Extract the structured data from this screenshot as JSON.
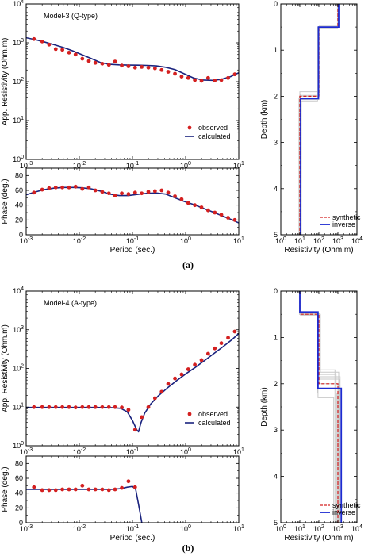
{
  "figure_labels": {
    "a": "(a)",
    "b": "(b)"
  },
  "colors": {
    "observed": "#d42020",
    "calculated": "#1a237e",
    "inverse": "#1d2bd1",
    "synthetic": "#d42020",
    "ensemble": "#c9c9c9"
  },
  "chart_data": [
    {
      "id": "a-rho",
      "type": "scatter",
      "title": "Model-3 (Q-type)",
      "xlabel": "",
      "ylabel": "App. Resistivity (Ohm.m)",
      "xscale": "log",
      "yscale": "log",
      "xlim": [
        0.001,
        10
      ],
      "ylim": [
        1,
        10000
      ],
      "xticks": [
        "10^-3",
        "10^-2",
        "10^-1",
        "10^0",
        "10^1"
      ],
      "yticks": [
        "10^0",
        "10^1",
        "10^2",
        "10^3",
        "10^4"
      ],
      "legend": {
        "position": "bottom-right",
        "entries": [
          "observed",
          "calculated"
        ]
      },
      "series": [
        {
          "name": "observed",
          "style": "points",
          "x": [
            0.0014,
            0.002,
            0.0027,
            0.0036,
            0.0048,
            0.0064,
            0.0085,
            0.0114,
            0.0151,
            0.02,
            0.027,
            0.036,
            0.047,
            0.063,
            0.084,
            0.112,
            0.149,
            0.199,
            0.265,
            0.354,
            0.47,
            0.63,
            0.84,
            1.12,
            1.49,
            1.99,
            2.65,
            3.54,
            4.7,
            6.3,
            8.4
          ],
          "y": [
            1250,
            1080,
            900,
            690,
            660,
            560,
            500,
            390,
            340,
            305,
            290,
            270,
            330,
            260,
            250,
            230,
            240,
            230,
            220,
            200,
            180,
            160,
            135,
            125,
            110,
            105,
            125,
            108,
            110,
            125,
            155
          ]
        },
        {
          "name": "calculated",
          "style": "line",
          "x": [
            0.001,
            0.0015,
            0.0022,
            0.0033,
            0.005,
            0.0075,
            0.011,
            0.017,
            0.025,
            0.037,
            0.056,
            0.084,
            0.125,
            0.19,
            0.28,
            0.42,
            0.63,
            0.94,
            1.4,
            2.1,
            3.2,
            4.7,
            7.0,
            10.0
          ],
          "y": [
            1350,
            1200,
            1050,
            900,
            760,
            620,
            500,
            390,
            310,
            280,
            270,
            268,
            266,
            262,
            255,
            235,
            205,
            160,
            125,
            110,
            108,
            115,
            135,
            170
          ]
        }
      ]
    },
    {
      "id": "a-phase",
      "type": "scatter",
      "title": "",
      "xlabel": "Period (sec.)",
      "ylabel": "Phase (deg.)",
      "xscale": "log",
      "yscale": "linear",
      "xlim": [
        0.001,
        10
      ],
      "ylim": [
        0,
        90
      ],
      "xticks": [
        "10^-3",
        "10^-2",
        "10^-1",
        "10^0",
        "10^1"
      ],
      "yticks": [
        "0",
        "20",
        "40",
        "60",
        "80"
      ],
      "series": [
        {
          "name": "observed",
          "style": "points",
          "x": [
            0.0014,
            0.002,
            0.0027,
            0.0036,
            0.0048,
            0.0064,
            0.0085,
            0.0114,
            0.0151,
            0.02,
            0.027,
            0.036,
            0.047,
            0.063,
            0.084,
            0.112,
            0.149,
            0.199,
            0.265,
            0.354,
            0.47,
            0.63,
            0.84,
            1.12,
            1.49,
            1.99,
            2.65,
            3.54,
            4.7,
            6.3,
            8.4
          ],
          "y": [
            57,
            61,
            63,
            64,
            64,
            64,
            65,
            62,
            64,
            60,
            58,
            56,
            53,
            56,
            55,
            57,
            56,
            58,
            59,
            60,
            57,
            52,
            48,
            43,
            40,
            37,
            33,
            30,
            27,
            23,
            20
          ]
        },
        {
          "name": "calculated",
          "style": "line",
          "x": [
            0.001,
            0.0015,
            0.0022,
            0.0033,
            0.005,
            0.0075,
            0.011,
            0.017,
            0.025,
            0.037,
            0.056,
            0.084,
            0.125,
            0.19,
            0.28,
            0.42,
            0.63,
            0.94,
            1.4,
            2.1,
            3.2,
            4.7,
            7.0,
            10.0
          ],
          "y": [
            54,
            58,
            61,
            63,
            64,
            64,
            63.5,
            62,
            59,
            55,
            53,
            53,
            54.5,
            56,
            56.5,
            55,
            50,
            45,
            41,
            36,
            31,
            26,
            21,
            16
          ]
        }
      ]
    },
    {
      "id": "a-model",
      "type": "line",
      "title": "",
      "xlabel": "Resistivity (Ohm.m)",
      "ylabel": "Depth (km)",
      "xscale": "log",
      "yscale": "linear",
      "xlim": [
        1,
        10000
      ],
      "ylim": [
        5,
        0
      ],
      "xticks": [
        "10^0",
        "10^1",
        "10^2",
        "10^3",
        "10^4"
      ],
      "yticks": [
        "0",
        "1",
        "2",
        "3",
        "4",
        "5"
      ],
      "legend": {
        "position": "bottom-right",
        "entries": [
          "synthetic",
          "inverse"
        ]
      },
      "series": [
        {
          "name": "synthetic",
          "style": "dashed",
          "layers": [
            {
              "rho": 1000,
              "top": 0,
              "bottom": 0.5
            },
            {
              "rho": 100,
              "top": 0.5,
              "bottom": 2.0
            },
            {
              "rho": 10,
              "top": 2.0,
              "bottom": 5.0
            }
          ]
        },
        {
          "name": "inverse",
          "style": "solid",
          "layers": [
            {
              "rho": 1100,
              "top": 0,
              "bottom": 0.5
            },
            {
              "rho": 95,
              "top": 0.5,
              "bottom": 2.05
            },
            {
              "rho": 11,
              "top": 2.05,
              "bottom": 5.0
            }
          ]
        }
      ],
      "ensemble": [
        {
          "rho": [
            1000,
            90,
            10
          ],
          "d": [
            0.5,
            1.9
          ]
        },
        {
          "rho": [
            1050,
            105,
            11
          ],
          "d": [
            0.48,
            1.95
          ]
        },
        {
          "rho": [
            950,
            100,
            9
          ],
          "d": [
            0.52,
            2.05
          ]
        },
        {
          "rho": [
            1000,
            85,
            12
          ],
          "d": [
            0.5,
            2.1
          ]
        },
        {
          "rho": [
            1100,
            110,
            10
          ],
          "d": [
            0.5,
            1.98
          ]
        },
        {
          "rho": [
            980,
            95,
            9.5
          ],
          "d": [
            0.49,
            2.0
          ]
        },
        {
          "rho": [
            1020,
            100,
            11.5
          ],
          "d": [
            0.51,
            2.07
          ]
        }
      ]
    },
    {
      "id": "b-rho",
      "type": "scatter",
      "title": "Model-4 (A-type)",
      "xlabel": "",
      "ylabel": "App. Resistivity (Ohm.m)",
      "xscale": "log",
      "yscale": "log",
      "xlim": [
        0.001,
        10
      ],
      "ylim": [
        1,
        10000
      ],
      "xticks": [
        "10^-3",
        "10^-2",
        "10^-1",
        "10^0",
        "10^1"
      ],
      "yticks": [
        "10^0",
        "10^1",
        "10^2",
        "10^3",
        "10^4"
      ],
      "legend": {
        "position": "bottom-right",
        "entries": [
          "observed",
          "calculated"
        ]
      },
      "series": [
        {
          "name": "observed",
          "style": "points",
          "x": [
            0.0014,
            0.002,
            0.0027,
            0.0036,
            0.0048,
            0.0064,
            0.0085,
            0.0114,
            0.0151,
            0.02,
            0.027,
            0.036,
            0.047,
            0.063,
            0.084,
            0.112,
            0.149,
            0.199,
            0.265,
            0.354,
            0.47,
            0.63,
            0.84,
            1.12,
            1.49,
            1.99,
            2.65,
            3.54,
            4.7,
            6.3,
            8.4
          ],
          "y": [
            10,
            10,
            10,
            10,
            10,
            10,
            9.8,
            10,
            10,
            10,
            10,
            10,
            10,
            9.8,
            8.5,
            2.6,
            5.5,
            10,
            17,
            25,
            40,
            55,
            70,
            95,
            125,
            165,
            240,
            330,
            450,
            620,
            900
          ]
        },
        {
          "name": "calculated",
          "style": "line",
          "x": [
            0.001,
            0.002,
            0.005,
            0.01,
            0.02,
            0.04,
            0.06,
            0.08,
            0.1,
            0.12,
            0.13,
            0.145,
            0.17,
            0.22,
            0.3,
            0.45,
            0.7,
            1.0,
            1.5,
            2.2,
            3.3,
            5.0,
            7.5,
            10.0
          ],
          "y": [
            9.8,
            9.8,
            9.8,
            9.8,
            9.8,
            9.7,
            9.3,
            7.5,
            4.5,
            2.6,
            2.3,
            4.0,
            7.0,
            12,
            19,
            31,
            50,
            72,
            105,
            155,
            235,
            360,
            560,
            800
          ]
        }
      ]
    },
    {
      "id": "b-phase",
      "type": "scatter",
      "title": "",
      "xlabel": "Period (sec.)",
      "ylabel": "Phase (deg.)",
      "xscale": "log",
      "yscale": "linear",
      "xlim": [
        0.001,
        10
      ],
      "ylim": [
        0,
        90
      ],
      "xticks": [
        "10^-3",
        "10^-2",
        "10^-1",
        "10^0",
        "10^1"
      ],
      "yticks": [
        "0",
        "20",
        "40",
        "60",
        "80"
      ],
      "series": [
        {
          "name": "observed",
          "style": "points",
          "x": [
            0.0014,
            0.002,
            0.0027,
            0.0036,
            0.0048,
            0.0064,
            0.0085,
            0.0114,
            0.0151,
            0.02,
            0.027,
            0.036,
            0.047,
            0.063,
            0.084,
            0.112
          ],
          "y": [
            48,
            44,
            44,
            44,
            45,
            45,
            45,
            50,
            45,
            45,
            45,
            44,
            45,
            47,
            56,
            48
          ]
        },
        {
          "name": "calculated",
          "style": "line",
          "x": [
            0.001,
            0.002,
            0.005,
            0.01,
            0.02,
            0.04,
            0.06,
            0.08,
            0.1,
            0.115,
            0.13,
            0.15
          ],
          "y": [
            45,
            45,
            45,
            45,
            45,
            45,
            46,
            48,
            49,
            45,
            25,
            0
          ]
        }
      ]
    },
    {
      "id": "b-model",
      "type": "line",
      "title": "",
      "xlabel": "Resistivity (Ohm.m)",
      "ylabel": "Depth (km)",
      "xscale": "log",
      "yscale": "linear",
      "xlim": [
        1,
        10000
      ],
      "ylim": [
        5,
        0
      ],
      "xticks": [
        "10^0",
        "10^1",
        "10^2",
        "10^3",
        "10^4"
      ],
      "yticks": [
        "0",
        "1",
        "2",
        "3",
        "4",
        "5"
      ],
      "legend": {
        "position": "bottom-right",
        "entries": [
          "synthetic",
          "inverse"
        ]
      },
      "series": [
        {
          "name": "synthetic",
          "style": "dashed",
          "layers": [
            {
              "rho": 10,
              "top": 0,
              "bottom": 0.5
            },
            {
              "rho": 100,
              "top": 0.5,
              "bottom": 2.0
            },
            {
              "rho": 1000,
              "top": 2.0,
              "bottom": 5.0
            }
          ]
        },
        {
          "name": "inverse",
          "style": "solid",
          "layers": [
            {
              "rho": 10,
              "top": 0,
              "bottom": 0.45
            },
            {
              "rho": 90,
              "top": 0.45,
              "bottom": 2.1
            },
            {
              "rho": 1500,
              "top": 2.1,
              "bottom": 5.0
            }
          ]
        }
      ],
      "ensemble": [
        {
          "rho": [
            10,
            95,
            700
          ],
          "d": [
            0.5,
            1.7
          ]
        },
        {
          "rho": [
            10,
            110,
            800
          ],
          "d": [
            0.48,
            1.8
          ]
        },
        {
          "rho": [
            11,
            100,
            1200
          ],
          "d": [
            0.52,
            1.9
          ]
        },
        {
          "rho": [
            10,
            85,
            900
          ],
          "d": [
            0.5,
            2.2
          ]
        },
        {
          "rho": [
            9.5,
            120,
            1100
          ],
          "d": [
            0.5,
            1.75
          ]
        },
        {
          "rho": [
            10,
            105,
            1000
          ],
          "d": [
            0.49,
            2.0
          ]
        },
        {
          "rho": [
            10.5,
            90,
            600
          ],
          "d": [
            0.51,
            2.3
          ]
        },
        {
          "rho": [
            10,
            100,
            1300
          ],
          "d": [
            0.5,
            1.85
          ]
        }
      ]
    }
  ]
}
